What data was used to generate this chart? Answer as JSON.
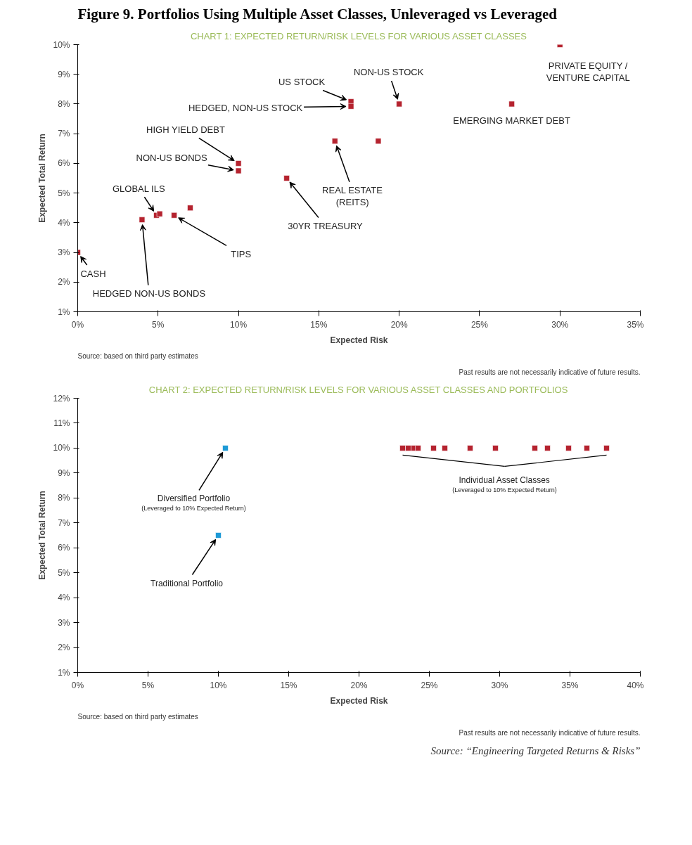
{
  "chart_data": [
    {
      "type": "scatter",
      "title": "Figure 9. Portfolios Using Multiple Asset Classes, Unleveraged vs Leveraged",
      "subtitle": "CHART 1: EXPECTED RETURN/RISK LEVELS FOR VARIOUS ASSET CLASSES",
      "xlabel": "Expected Risk",
      "ylabel": "Expected Total Return",
      "marker": "square",
      "grid": false,
      "xlim": [
        0,
        35
      ],
      "xticks": [
        {
          "value": 0,
          "label": "0%"
        },
        {
          "value": 5,
          "label": "5%"
        },
        {
          "value": 10,
          "label": "10%"
        },
        {
          "value": 15,
          "label": "15%"
        },
        {
          "value": 20,
          "label": "20%"
        },
        {
          "value": 25,
          "label": "25%"
        },
        {
          "value": 30,
          "label": "30%"
        },
        {
          "value": 35,
          "label": "35%"
        }
      ],
      "ylim": [
        1,
        10
      ],
      "yticks": [
        {
          "value": 1,
          "label": "1%"
        },
        {
          "value": 2,
          "label": "2%"
        },
        {
          "value": 3,
          "label": "3%"
        },
        {
          "value": 4,
          "label": "4%"
        },
        {
          "value": 5,
          "label": "5%"
        },
        {
          "value": 6,
          "label": "6%"
        },
        {
          "value": 7,
          "label": "7%"
        },
        {
          "value": 8,
          "label": "8%"
        },
        {
          "value": 9,
          "label": "9%"
        },
        {
          "value": 10,
          "label": "10%"
        }
      ],
      "series": [
        {
          "color": "#b5232f",
          "x": [
            0,
            4,
            4.9,
            5.1,
            6,
            7,
            10,
            10,
            13,
            16,
            18.7,
            17,
            17,
            20,
            27,
            30
          ],
          "values": [
            3,
            4.1,
            4.25,
            4.3,
            4.25,
            4.5,
            5.75,
            6,
            5.5,
            6.75,
            6.75,
            8.08,
            7.92,
            8,
            8,
            10
          ]
        }
      ],
      "annotations": [
        {
          "text": "CASH",
          "x": 0,
          "y": 3
        },
        {
          "text": "HEDGED NON-US BONDS",
          "x": 4,
          "y": 4.1
        },
        {
          "text": "GLOBAL ILS",
          "x": 4.9,
          "y": 4.25
        },
        {
          "text": "TIPS",
          "x": 6,
          "y": 4.25
        },
        {
          "text": "NON-US BONDS",
          "x": 10,
          "y": 5.75
        },
        {
          "text": "HIGH YIELD DEBT",
          "x": 10,
          "y": 6
        },
        {
          "text": "30YR TREASURY",
          "x": 13,
          "y": 5.5
        },
        {
          "text": "REAL ESTATE\n(REITS)",
          "x": 16,
          "y": 6.75
        },
        {
          "text": "US STOCK",
          "x": 17,
          "y": 8.08
        },
        {
          "text": "HEDGED, NON-US STOCK",
          "x": 17,
          "y": 7.92
        },
        {
          "text": "NON-US STOCK",
          "x": 20,
          "y": 8
        },
        {
          "text": "EMERGING MARKET DEBT",
          "x": 27,
          "y": 8
        },
        {
          "text": "PRIVATE EQUITY /\nVENTURE CAPITAL",
          "x": 30,
          "y": 10
        },
        "Source: based on third party estimates",
        "Past results are not necessarily indicative of future results."
      ]
    },
    {
      "type": "scatter",
      "title": "CHART 2: EXPECTED RETURN/RISK LEVELS FOR VARIOUS ASSET CLASSES AND PORTFOLIOS",
      "xlabel": "Expected Risk",
      "ylabel": "Expected Total Return",
      "marker": "square",
      "grid": false,
      "xlim": [
        0,
        40
      ],
      "xticks": [
        {
          "value": 0,
          "label": "0%"
        },
        {
          "value": 5,
          "label": "5%"
        },
        {
          "value": 10,
          "label": "10%"
        },
        {
          "value": 15,
          "label": "15%"
        },
        {
          "value": 20,
          "label": "20%"
        },
        {
          "value": 25,
          "label": "25%"
        },
        {
          "value": 30,
          "label": "30%"
        },
        {
          "value": 35,
          "label": "35%"
        },
        {
          "value": 40,
          "label": "40%"
        }
      ],
      "ylim": [
        1,
        12
      ],
      "yticks": [
        {
          "value": 1,
          "label": "1%"
        },
        {
          "value": 2,
          "label": "2%"
        },
        {
          "value": 3,
          "label": "3%"
        },
        {
          "value": 4,
          "label": "4%"
        },
        {
          "value": 5,
          "label": "5%"
        },
        {
          "value": 6,
          "label": "6%"
        },
        {
          "value": 7,
          "label": "7%"
        },
        {
          "value": 8,
          "label": "8%"
        },
        {
          "value": 9,
          "label": "9%"
        },
        {
          "value": 10,
          "label": "10%"
        },
        {
          "value": 11,
          "label": "11%"
        },
        {
          "value": 12,
          "label": "12%"
        }
      ],
      "series": [
        {
          "color": "#1e9ad6",
          "x": [
            10.5,
            10
          ],
          "values": [
            10,
            6.5
          ]
        },
        {
          "color": "#b5232f",
          "x": [
            23.1,
            23.5,
            23.9,
            24.2,
            25.3,
            26.1,
            27.9,
            29.7,
            32.5,
            33.4,
            34.9,
            36.2,
            37.6
          ],
          "values": [
            10,
            10,
            10,
            10,
            10,
            10,
            10,
            10,
            10,
            10,
            10,
            10,
            10
          ]
        }
      ],
      "annotations": [
        {
          "text": "Diversified Portfolio\n(Leveraged to 10% Expected Return)",
          "x": 10.5,
          "y": 10
        },
        {
          "text": "Traditional Portfolio",
          "x": 10,
          "y": 6.5
        },
        "Individual Asset Classes\n(Leveraged to 10% Expected Return)",
        "Source: based on third party estimates",
        "Past results are not necessarily indicative of future results.",
        "Source: “Engineering Targeted Returns & Risks”"
      ]
    }
  ]
}
